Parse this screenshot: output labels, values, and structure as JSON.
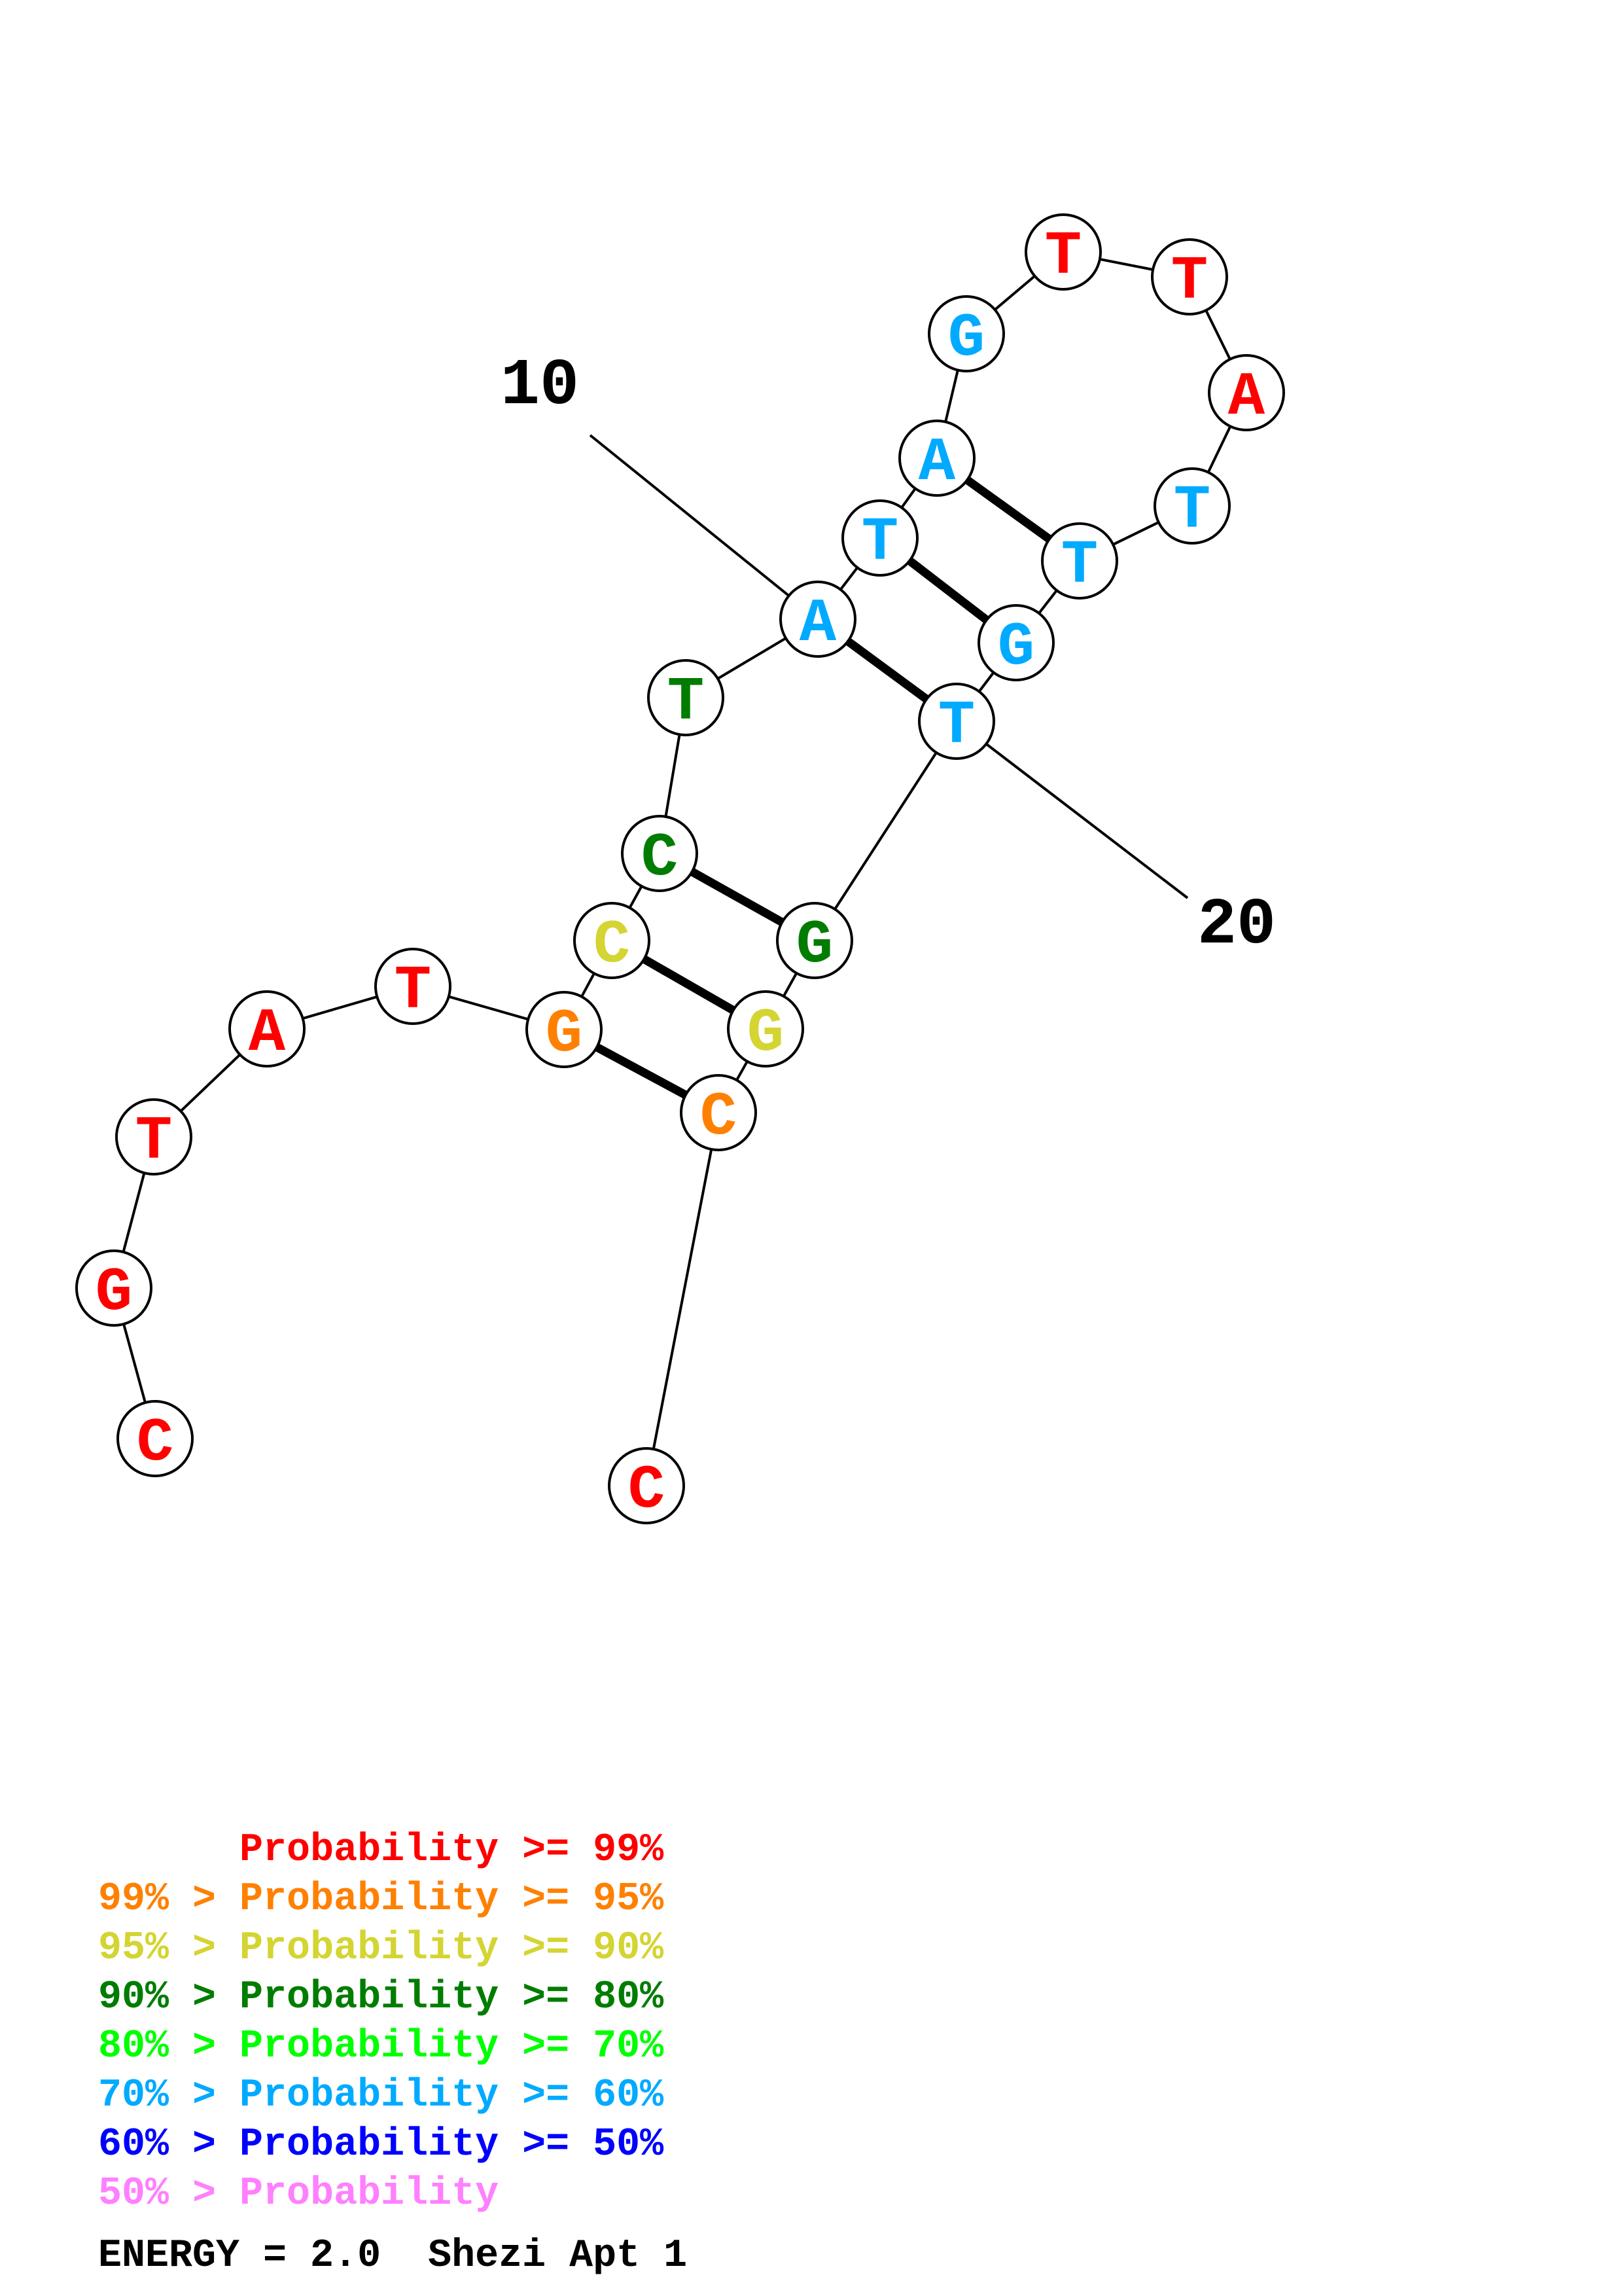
{
  "colors": {
    "p99": "#ff0000",
    "p95": "#ff8000",
    "p90": "#d4d432",
    "p80": "#007d00",
    "p70": "#00ff00",
    "p60": "#00aaff",
    "p50": "#0000ff",
    "plt50": "#ff80ff"
  },
  "nucleotides": [
    {
      "n": 1,
      "base": "C",
      "prob": "p99"
    },
    {
      "n": 2,
      "base": "G",
      "prob": "p99"
    },
    {
      "n": 3,
      "base": "T",
      "prob": "p99"
    },
    {
      "n": 4,
      "base": "A",
      "prob": "p99"
    },
    {
      "n": 5,
      "base": "T",
      "prob": "p99"
    },
    {
      "n": 6,
      "base": "G",
      "prob": "p95"
    },
    {
      "n": 7,
      "base": "C",
      "prob": "p90"
    },
    {
      "n": 8,
      "base": "C",
      "prob": "p80"
    },
    {
      "n": 9,
      "base": "T",
      "prob": "p80"
    },
    {
      "n": 10,
      "base": "A",
      "prob": "p60"
    },
    {
      "n": 11,
      "base": "T",
      "prob": "p60"
    },
    {
      "n": 12,
      "base": "A",
      "prob": "p60"
    },
    {
      "n": 13,
      "base": "G",
      "prob": "p60"
    },
    {
      "n": 14,
      "base": "T",
      "prob": "p99"
    },
    {
      "n": 15,
      "base": "T",
      "prob": "p99"
    },
    {
      "n": 16,
      "base": "A",
      "prob": "p99"
    },
    {
      "n": 17,
      "base": "T",
      "prob": "p60"
    },
    {
      "n": 18,
      "base": "T",
      "prob": "p60"
    },
    {
      "n": 19,
      "base": "G",
      "prob": "p60"
    },
    {
      "n": 20,
      "base": "T",
      "prob": "p60"
    },
    {
      "n": 21,
      "base": "G",
      "prob": "p80"
    },
    {
      "n": 22,
      "base": "G",
      "prob": "p90"
    },
    {
      "n": 23,
      "base": "C",
      "prob": "p95"
    },
    {
      "n": 24,
      "base": "C",
      "prob": "p99"
    }
  ],
  "pairs": [
    [
      6,
      23
    ],
    [
      7,
      22
    ],
    [
      8,
      21
    ],
    [
      10,
      20
    ],
    [
      11,
      19
    ],
    [
      12,
      18
    ]
  ],
  "position_labels": [
    {
      "text": "10",
      "nt": 10
    },
    {
      "text": "20",
      "nt": 20
    }
  ],
  "legend": [
    {
      "prefix": "",
      "text": "Probability >= 99%",
      "prob": "p99"
    },
    {
      "prefix": "99% > ",
      "text": "Probability >= 95%",
      "prob": "p95"
    },
    {
      "prefix": "95% > ",
      "text": "Probability >= 90%",
      "prob": "p90"
    },
    {
      "prefix": "90% > ",
      "text": "Probability >= 80%",
      "prob": "p80"
    },
    {
      "prefix": "80% > ",
      "text": "Probability >= 70%",
      "prob": "p70"
    },
    {
      "prefix": "70% > ",
      "text": "Probability >= 60%",
      "prob": "p60"
    },
    {
      "prefix": "60% > ",
      "text": "Probability >= 50%",
      "prob": "p50"
    },
    {
      "prefix": "50% > ",
      "text": "Probability",
      "prob": "plt50"
    }
  ],
  "footer": "ENERGY = 2.0  Shezi Apt 1"
}
